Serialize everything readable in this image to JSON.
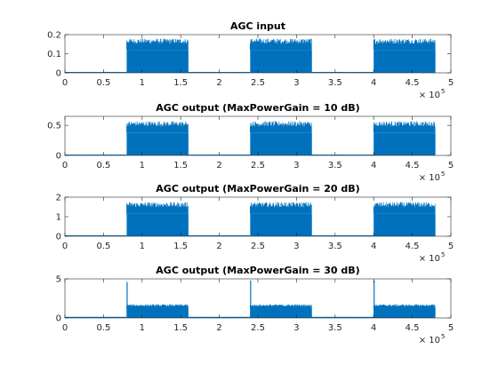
{
  "figure": {
    "background": "#ffffff",
    "line_color": "#0072BD"
  },
  "chart_data": [
    {
      "type": "line",
      "title": "AGC input",
      "xlim": [
        0,
        500000
      ],
      "ylim": [
        0,
        0.2
      ],
      "xticks": [
        0,
        50000,
        100000,
        150000,
        200000,
        250000,
        300000,
        350000,
        400000,
        450000,
        500000
      ],
      "xtick_labels": [
        "0",
        "0.5",
        "1",
        "1.5",
        "2",
        "2.5",
        "3",
        "3.5",
        "4",
        "4.5",
        "5"
      ],
      "x_exponent_base": "× 10",
      "x_exponent_power": "5",
      "yticks": [
        0,
        0.1,
        0.2
      ],
      "ytick_labels": [
        "0",
        "0.1",
        "0.2"
      ],
      "series": [
        {
          "segments": [
            {
              "x_start": 0,
              "x_end": 80000,
              "floor": 0,
              "level": 0.005,
              "spike": null
            },
            {
              "x_start": 80000,
              "x_end": 160000,
              "floor": 0.12,
              "level": 0.18,
              "spike": null
            },
            {
              "x_start": 160000,
              "x_end": 240000,
              "floor": 0,
              "level": 0.005,
              "spike": null
            },
            {
              "x_start": 240000,
              "x_end": 320000,
              "floor": 0.12,
              "level": 0.18,
              "spike": null
            },
            {
              "x_start": 320000,
              "x_end": 400000,
              "floor": 0,
              "level": 0.005,
              "spike": null
            },
            {
              "x_start": 400000,
              "x_end": 480000,
              "floor": 0.12,
              "level": 0.18,
              "spike": null
            }
          ]
        }
      ]
    },
    {
      "type": "line",
      "title": "AGC output (MaxPowerGain = 10 dB)",
      "xlim": [
        0,
        500000
      ],
      "ylim": [
        0,
        0.65
      ],
      "xticks": [
        0,
        50000,
        100000,
        150000,
        200000,
        250000,
        300000,
        350000,
        400000,
        450000,
        500000
      ],
      "xtick_labels": [
        "0",
        "0.5",
        "1",
        "1.5",
        "2",
        "2.5",
        "3",
        "3.5",
        "4",
        "4.5",
        "5"
      ],
      "x_exponent_base": "× 10",
      "x_exponent_power": "5",
      "yticks": [
        0,
        0.5
      ],
      "ytick_labels": [
        "0",
        "0.5"
      ],
      "series": [
        {
          "segments": [
            {
              "x_start": 0,
              "x_end": 80000,
              "floor": 0,
              "level": 0.015,
              "spike": null
            },
            {
              "x_start": 80000,
              "x_end": 160000,
              "floor": 0.38,
              "level": 0.57,
              "spike": null
            },
            {
              "x_start": 160000,
              "x_end": 240000,
              "floor": 0,
              "level": 0.015,
              "spike": null
            },
            {
              "x_start": 240000,
              "x_end": 320000,
              "floor": 0.38,
              "level": 0.57,
              "spike": null
            },
            {
              "x_start": 320000,
              "x_end": 400000,
              "floor": 0,
              "level": 0.015,
              "spike": null
            },
            {
              "x_start": 400000,
              "x_end": 480000,
              "floor": 0.38,
              "level": 0.57,
              "spike": null
            }
          ]
        }
      ]
    },
    {
      "type": "line",
      "title": "AGC output (MaxPowerGain = 20 dB)",
      "xlim": [
        0,
        500000
      ],
      "ylim": [
        0,
        2
      ],
      "xticks": [
        0,
        50000,
        100000,
        150000,
        200000,
        250000,
        300000,
        350000,
        400000,
        450000,
        500000
      ],
      "xtick_labels": [
        "0",
        "0.5",
        "1",
        "1.5",
        "2",
        "2.5",
        "3",
        "3.5",
        "4",
        "4.5",
        "5"
      ],
      "x_exponent_base": "× 10",
      "x_exponent_power": "5",
      "yticks": [
        0,
        1,
        2
      ],
      "ytick_labels": [
        "0",
        "1",
        "2"
      ],
      "series": [
        {
          "segments": [
            {
              "x_start": 0,
              "x_end": 80000,
              "floor": 0,
              "level": 0.05,
              "spike": null
            },
            {
              "x_start": 80000,
              "x_end": 160000,
              "floor": 1.15,
              "level": 1.75,
              "spike": null
            },
            {
              "x_start": 160000,
              "x_end": 240000,
              "floor": 0,
              "level": 0.05,
              "spike": null
            },
            {
              "x_start": 240000,
              "x_end": 320000,
              "floor": 1.15,
              "level": 1.75,
              "spike": null
            },
            {
              "x_start": 320000,
              "x_end": 400000,
              "floor": 0,
              "level": 0.05,
              "spike": null
            },
            {
              "x_start": 400000,
              "x_end": 480000,
              "floor": 1.15,
              "level": 1.75,
              "spike": null
            }
          ]
        }
      ]
    },
    {
      "type": "line",
      "title": "AGC output (MaxPowerGain = 30 dB)",
      "xlim": [
        0,
        500000
      ],
      "ylim": [
        0,
        5
      ],
      "xticks": [
        0,
        50000,
        100000,
        150000,
        200000,
        250000,
        300000,
        350000,
        400000,
        450000,
        500000
      ],
      "xtick_labels": [
        "0",
        "0.5",
        "1",
        "1.5",
        "2",
        "2.5",
        "3",
        "3.5",
        "4",
        "4.5",
        "5"
      ],
      "x_exponent_base": "× 10",
      "x_exponent_power": "5",
      "yticks": [
        0,
        5
      ],
      "ytick_labels": [
        "0",
        "5"
      ],
      "series": [
        {
          "segments": [
            {
              "x_start": 0,
              "x_end": 80000,
              "floor": 0,
              "level": 0.15,
              "spike": null
            },
            {
              "x_start": 80000,
              "x_end": 160000,
              "floor": 1.2,
              "level": 1.75,
              "spike": 4.6
            },
            {
              "x_start": 160000,
              "x_end": 240000,
              "floor": 0,
              "level": 0.15,
              "spike": null
            },
            {
              "x_start": 240000,
              "x_end": 320000,
              "floor": 1.2,
              "level": 1.75,
              "spike": 4.8
            },
            {
              "x_start": 320000,
              "x_end": 400000,
              "floor": 0,
              "level": 0.15,
              "spike": null
            },
            {
              "x_start": 400000,
              "x_end": 480000,
              "floor": 1.2,
              "level": 1.75,
              "spike": 4.8
            }
          ]
        }
      ]
    }
  ]
}
